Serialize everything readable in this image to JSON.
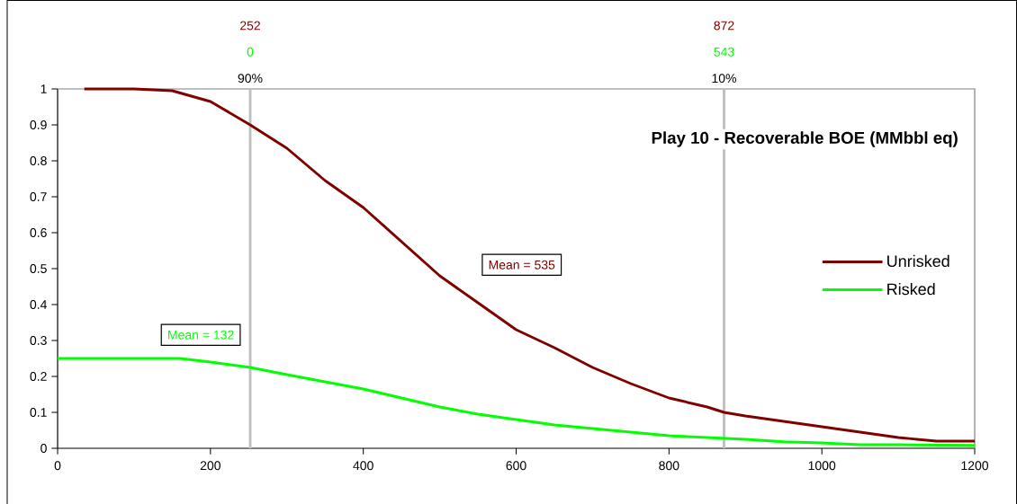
{
  "chart_data": {
    "type": "line",
    "title": "Play 10 - Recoverable BOE (MMbbl eq)",
    "xlim": [
      0,
      1200
    ],
    "xticks": [
      0,
      200,
      400,
      600,
      800,
      1000,
      1200
    ],
    "ylim": [
      0,
      1
    ],
    "yticks": [
      0,
      0.1,
      0.2,
      0.3,
      0.4,
      0.5,
      0.6,
      0.7,
      0.8,
      0.9,
      1
    ],
    "series": [
      {
        "name": "Unrisked",
        "color": "#800000",
        "x": [
          35,
          100,
          150,
          200,
          252,
          300,
          350,
          400,
          450,
          500,
          550,
          600,
          650,
          700,
          750,
          800,
          850,
          872,
          900,
          950,
          1000,
          1050,
          1100,
          1150,
          1200
        ],
        "values": [
          1.0,
          1.0,
          0.995,
          0.965,
          0.9,
          0.835,
          0.745,
          0.67,
          0.575,
          0.48,
          0.405,
          0.33,
          0.28,
          0.225,
          0.18,
          0.14,
          0.115,
          0.1,
          0.09,
          0.075,
          0.06,
          0.045,
          0.03,
          0.02,
          0.02
        ]
      },
      {
        "name": "Risked",
        "color": "#00ff00",
        "x": [
          0,
          160,
          200,
          252,
          300,
          350,
          400,
          450,
          500,
          550,
          600,
          650,
          700,
          750,
          800,
          850,
          900,
          950,
          1000,
          1050,
          1100,
          1200
        ],
        "values": [
          0.25,
          0.25,
          0.24,
          0.225,
          0.205,
          0.185,
          0.165,
          0.14,
          0.115,
          0.095,
          0.08,
          0.065,
          0.055,
          0.045,
          0.035,
          0.03,
          0.025,
          0.018,
          0.015,
          0.01,
          0.01,
          0.008
        ]
      }
    ],
    "ref_lines": [
      {
        "axis": "x",
        "value": 252,
        "color": "#c0c0c0"
      },
      {
        "axis": "x",
        "value": 872,
        "color": "#c0c0c0"
      }
    ],
    "annotations": [
      "252",
      "0",
      "90%",
      "872",
      "543",
      "10%",
      "Mean = 535",
      "Mean = 132"
    ],
    "legend": "right",
    "grid": false,
    "marker": "none",
    "line_style": "solid"
  }
}
